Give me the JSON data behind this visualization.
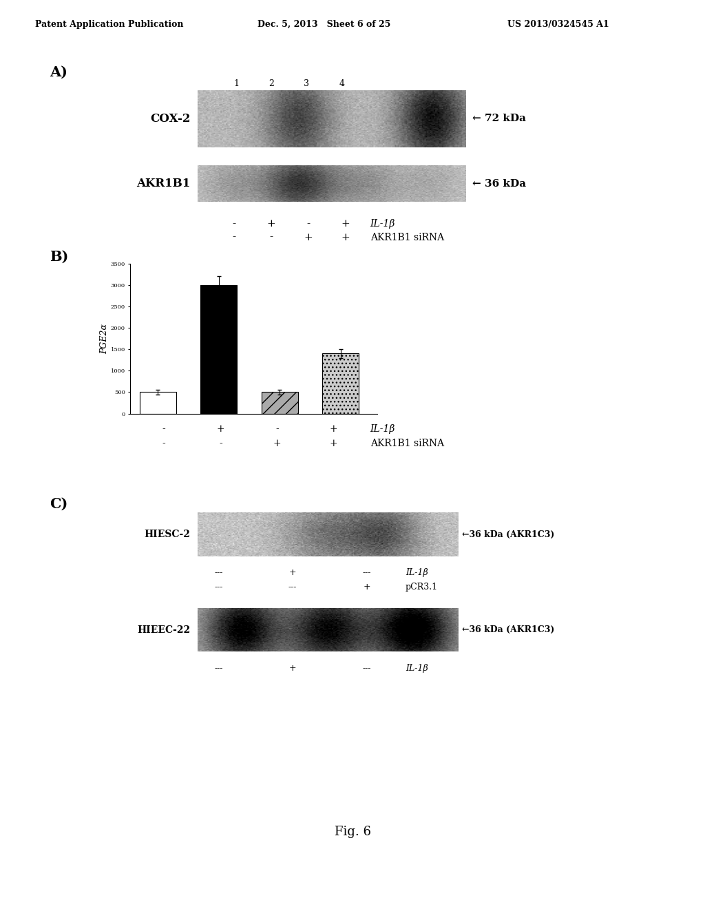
{
  "header_left": "Patent Application Publication",
  "header_mid": "Dec. 5, 2013   Sheet 6 of 25",
  "header_right": "US 2013/0324545 A1",
  "fig_label": "Fig. 6",
  "panel_A": {
    "label": "A)",
    "blot1_label": "COX-2",
    "blot1_kda": "72 kDa",
    "blot2_label": "AKR1B1",
    "blot2_kda": "36 kDa",
    "lane_numbers": [
      "1",
      "2",
      "3",
      "4"
    ],
    "row1_labels": [
      "-",
      "+",
      "-",
      "+"
    ],
    "row2_labels": [
      "-",
      "-",
      "+",
      "+"
    ],
    "row1_label_text": "IL-1β",
    "row2_label_text": "AKR1B1 siRNA"
  },
  "panel_B": {
    "label": "B)",
    "ylabel": "PGE2α",
    "bar_values": [
      500,
      3000,
      500,
      1400
    ],
    "bar_errors": [
      50,
      200,
      60,
      100
    ],
    "bar_colors": [
      "white",
      "black",
      "#aaaaaa",
      "#cccccc"
    ],
    "bar_hatches": [
      "",
      "",
      "//",
      "..."
    ],
    "ylim": [
      0,
      3500
    ],
    "ytick_step": 500,
    "row1_labels": [
      "-",
      "+",
      "-",
      "+"
    ],
    "row2_labels": [
      "-",
      "-",
      "+",
      "+"
    ],
    "row1_label_text": "IL-1β",
    "row2_label_text": "AKR1B1 siRNA"
  },
  "panel_C": {
    "label": "C)",
    "blot1_label": "HIESC-2",
    "blot1_kda": "36 kDa (AKR1C3)",
    "blot2_label": "HIEEC-22",
    "blot2_kda": "36 kDa (AKR1C3)",
    "hiesc_row1_labels": [
      "---",
      "+",
      "---"
    ],
    "hiesc_row2_labels": [
      "---",
      "---",
      "+"
    ],
    "hiesc_row1_text": "IL-1β",
    "hiesc_row2_text": "pCR3.1",
    "hieec_row1_labels": [
      "---",
      "+",
      "---"
    ],
    "hieec_row1_text": "IL-1β"
  },
  "background_color": "#ffffff",
  "text_color": "#000000"
}
